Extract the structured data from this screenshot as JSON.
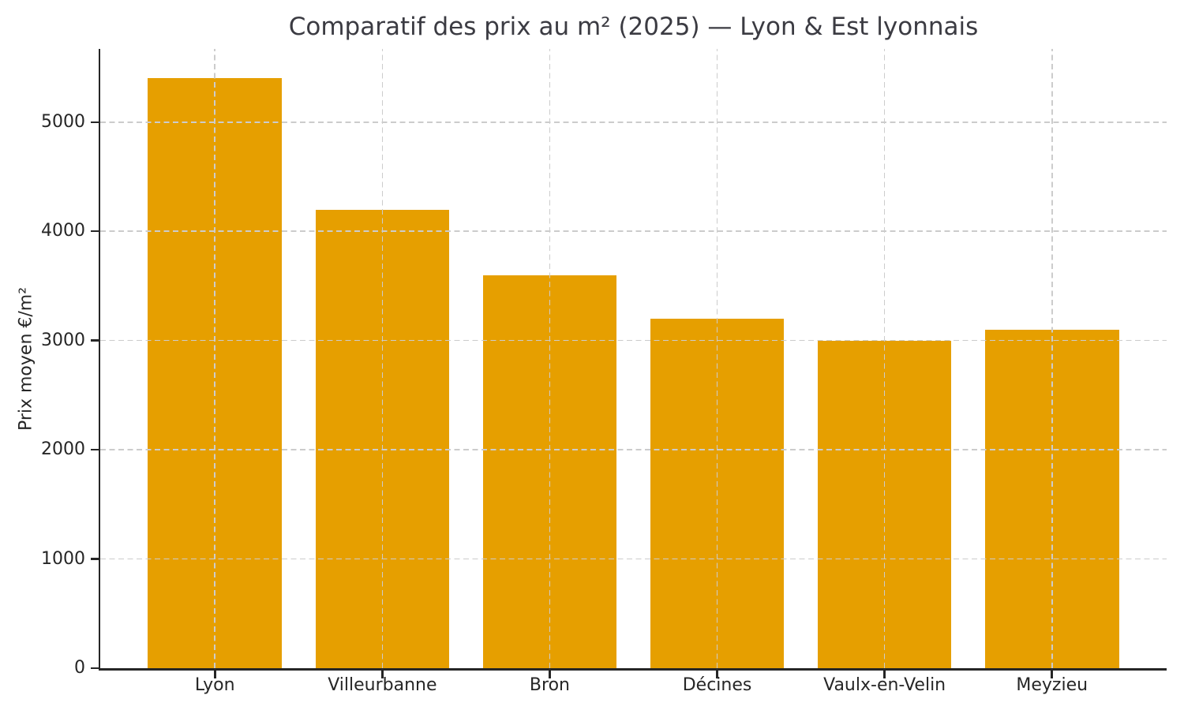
{
  "chart_data": {
    "type": "bar",
    "title": "Comparatif des prix au m² (2025) — Lyon & Est lyonnais",
    "ylabel": "Prix moyen €/m²",
    "xlabel": "",
    "categories": [
      "Lyon",
      "Villeurbanne",
      "Bron",
      "Décines",
      "Vaulx-en-Velin",
      "Meyzieu"
    ],
    "values": [
      5400,
      4200,
      3600,
      3200,
      3000,
      3100
    ],
    "yticks": [
      0,
      1000,
      2000,
      3000,
      4000,
      5000
    ],
    "ylim": [
      0,
      5670
    ],
    "bar_color": "#E69F00",
    "grid_style": "dashed",
    "grid_color": "#CCCCCC",
    "axis_color": "#262626",
    "title_color": "#3B3B42",
    "legend": "none",
    "grid_above_bars": true
  }
}
